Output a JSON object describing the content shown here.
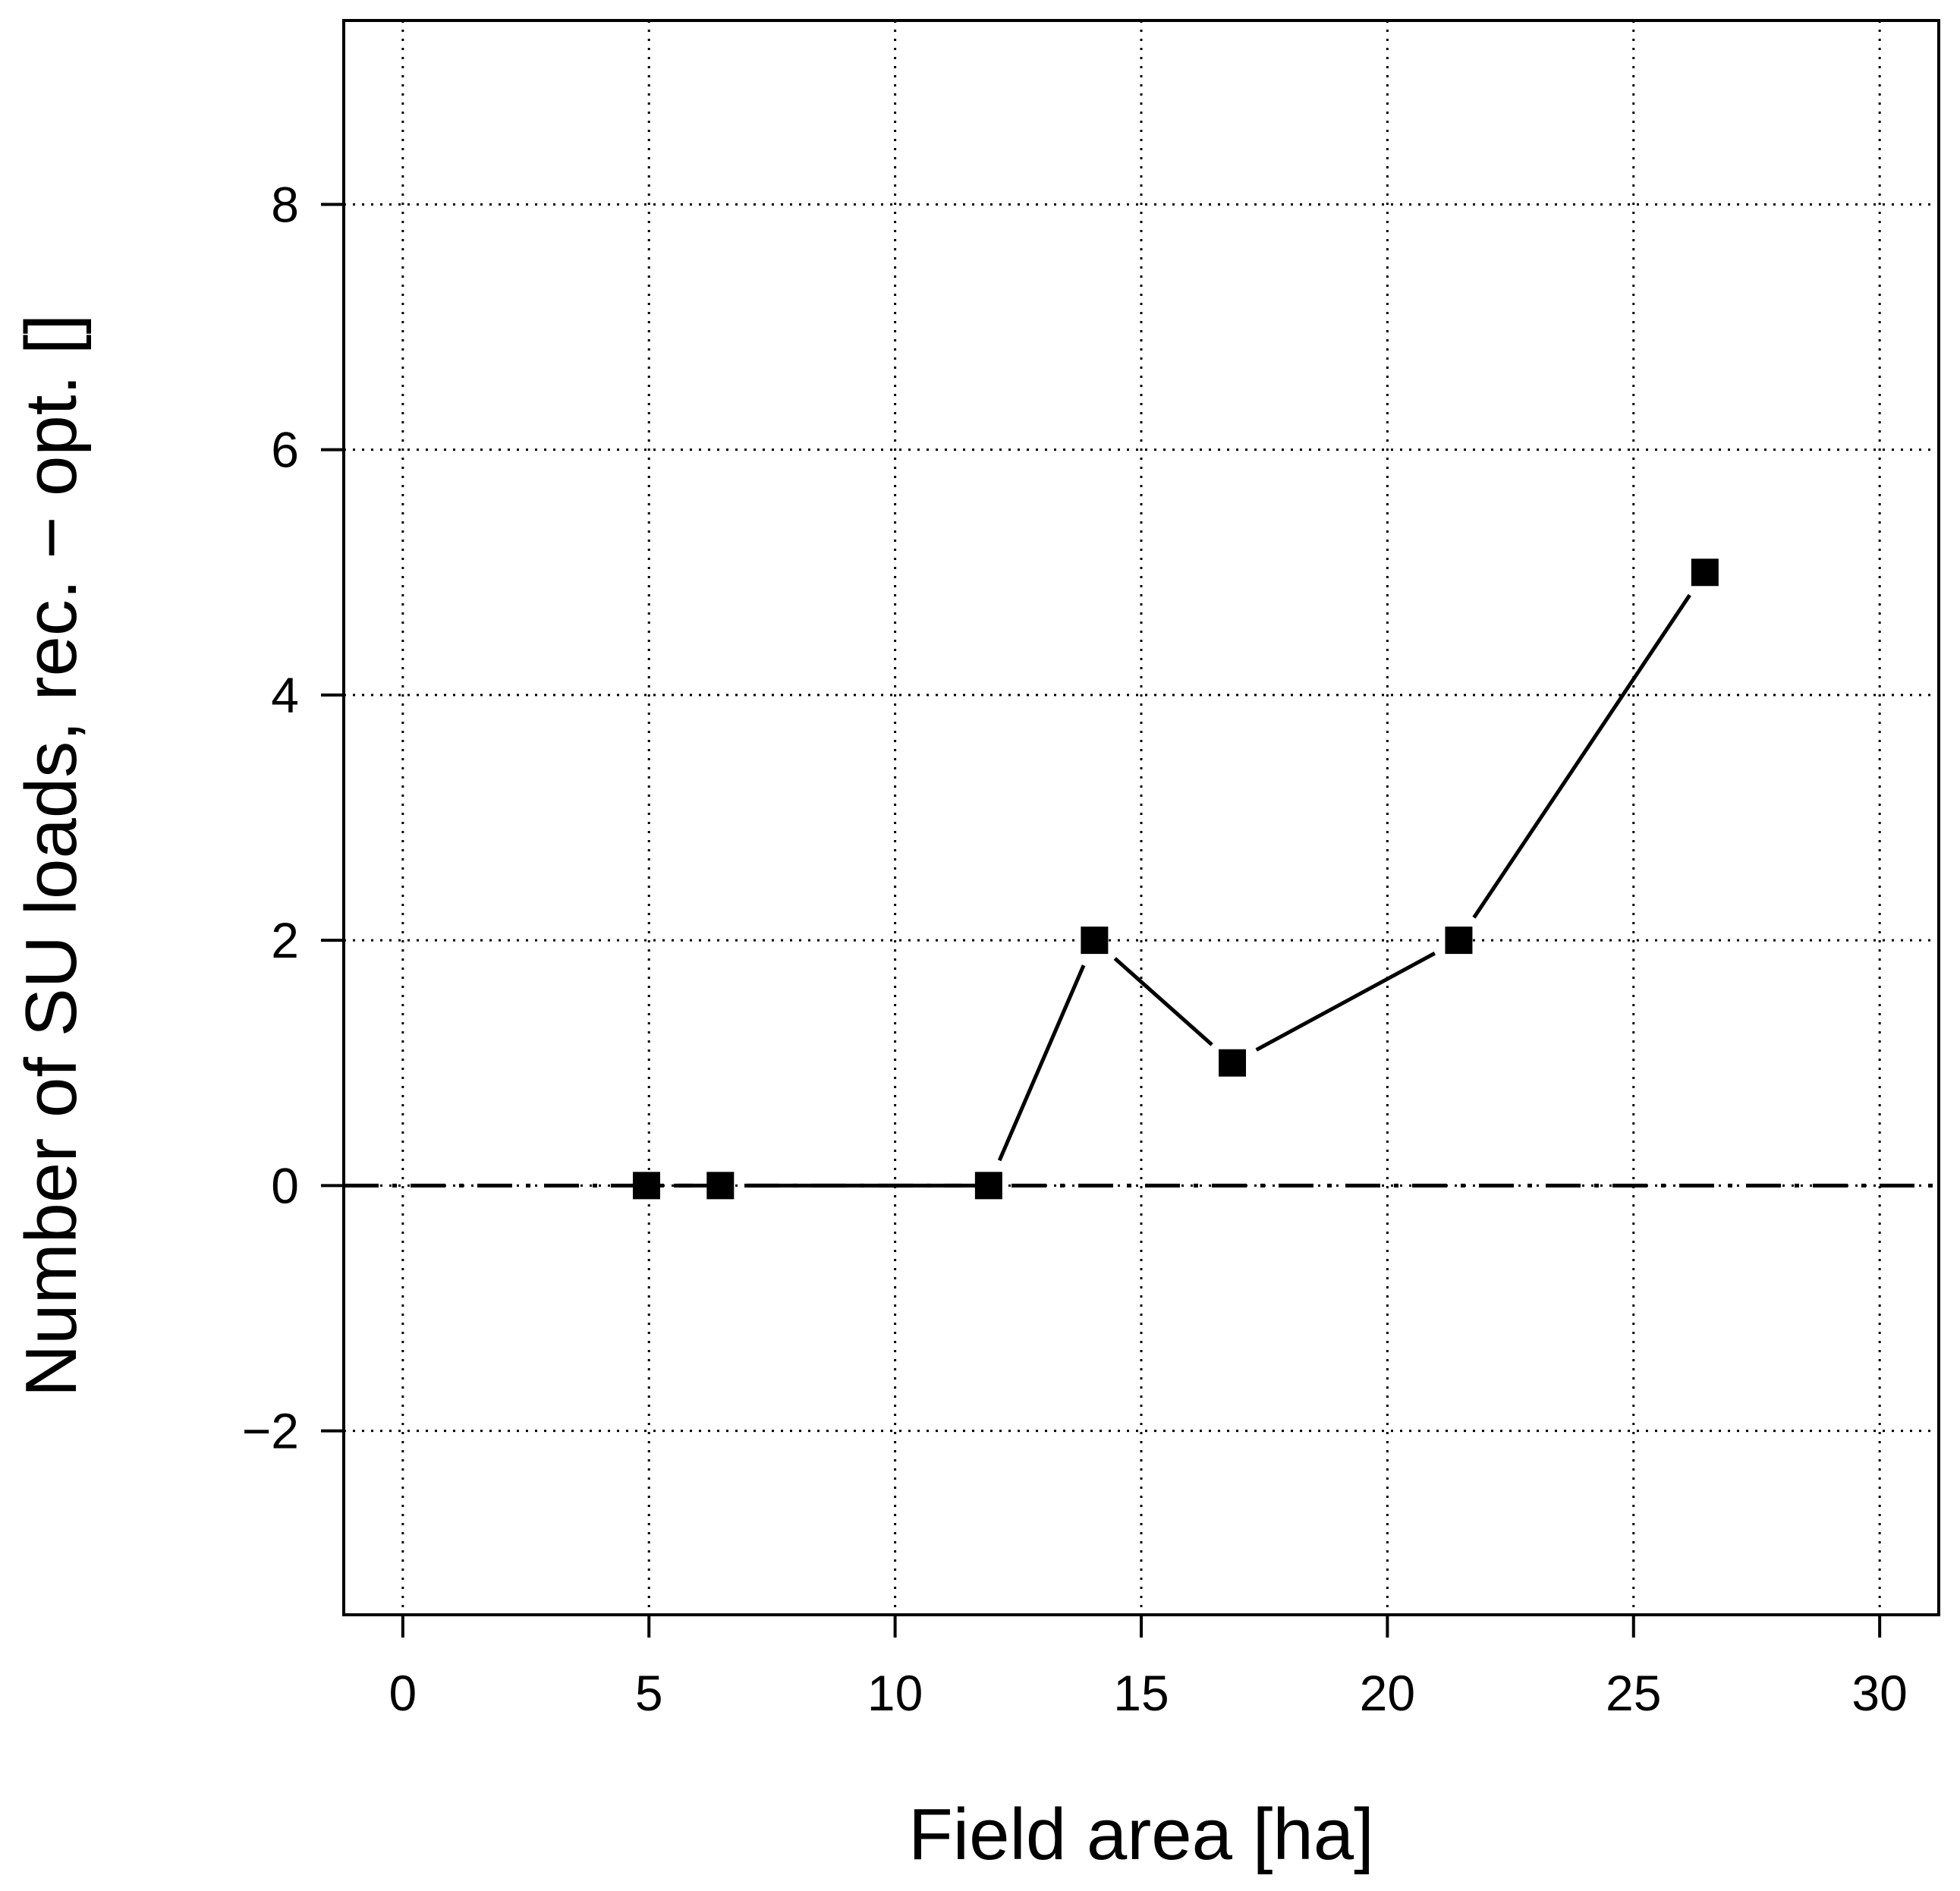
{
  "chart_data": {
    "type": "line",
    "title": "",
    "xlabel": "Field area [ha]",
    "ylabel": "Number of SU loads, rec. − opt. []",
    "xlim": [
      -1.2,
      31.2
    ],
    "ylim": [
      -3.5,
      9.5
    ],
    "x_ticks": [
      0,
      5,
      10,
      15,
      20,
      25,
      30
    ],
    "y_ticks": [
      -2,
      0,
      2,
      4,
      6,
      8
    ],
    "x_tick_labels": [
      "0",
      "5",
      "10",
      "15",
      "20",
      "25",
      "30"
    ],
    "y_tick_labels": [
      "−2",
      "0",
      "2",
      "4",
      "6",
      "8"
    ],
    "grid": true,
    "reference_line": {
      "y": 0,
      "style": "dash-dot"
    },
    "series": [
      {
        "marker": "square",
        "color": "#000000",
        "x": [
          4.95,
          6.45,
          11.9,
          14.05,
          16.85,
          21.45,
          26.45
        ],
        "y": [
          0,
          0,
          0,
          2,
          1,
          2,
          5
        ]
      }
    ]
  }
}
